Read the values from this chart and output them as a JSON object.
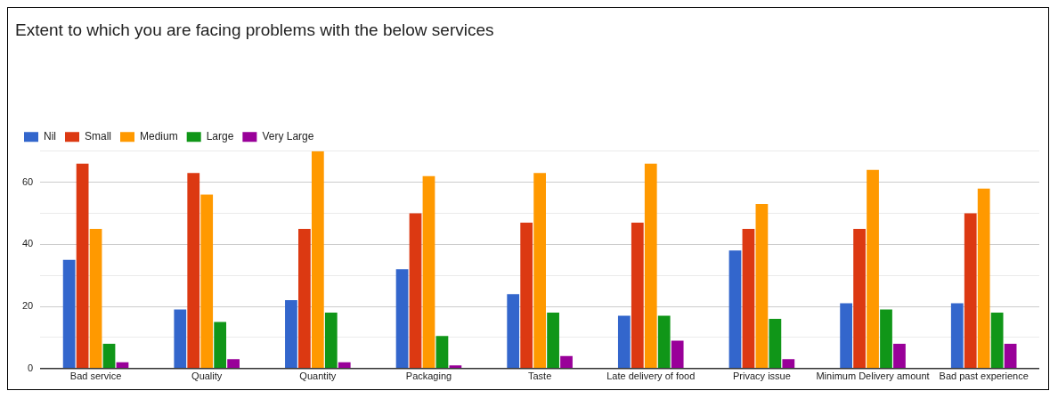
{
  "chart_data": {
    "type": "bar",
    "title": "Extent to which you are facing problems with the below services",
    "categories": [
      "Bad service",
      "Quality",
      "Quantity",
      "Packaging",
      "Taste",
      "Late delivery of food",
      "Privacy issue",
      "Minimum Delivery amount",
      "Bad past experience"
    ],
    "series": [
      {
        "name": "Nil",
        "color": "#3366cc",
        "values": [
          35,
          19,
          22,
          32,
          24,
          17,
          38,
          21,
          21
        ]
      },
      {
        "name": "Small",
        "color": "#dc3912",
        "values": [
          66,
          63,
          45,
          50,
          47,
          47,
          45,
          45,
          50
        ]
      },
      {
        "name": "Medium",
        "color": "#ff9900",
        "values": [
          45,
          56,
          70,
          62,
          63,
          66,
          53,
          64,
          58
        ]
      },
      {
        "name": "Large",
        "color": "#109618",
        "values": [
          8,
          15,
          18,
          10.5,
          18,
          17,
          16,
          19,
          18
        ]
      },
      {
        "name": "Very Large",
        "color": "#990099",
        "values": [
          2,
          3,
          2,
          1,
          4,
          9,
          3,
          8,
          8
        ]
      }
    ],
    "ylim": [
      0,
      70
    ],
    "yticks": [
      0,
      {
        "value": 10,
        "label": null
      },
      20,
      {
        "value": 30,
        "label": null
      },
      40,
      {
        "value": 50,
        "label": null
      },
      60,
      {
        "value": 70,
        "label": null
      }
    ],
    "grid": "y",
    "legend": "top left"
  }
}
